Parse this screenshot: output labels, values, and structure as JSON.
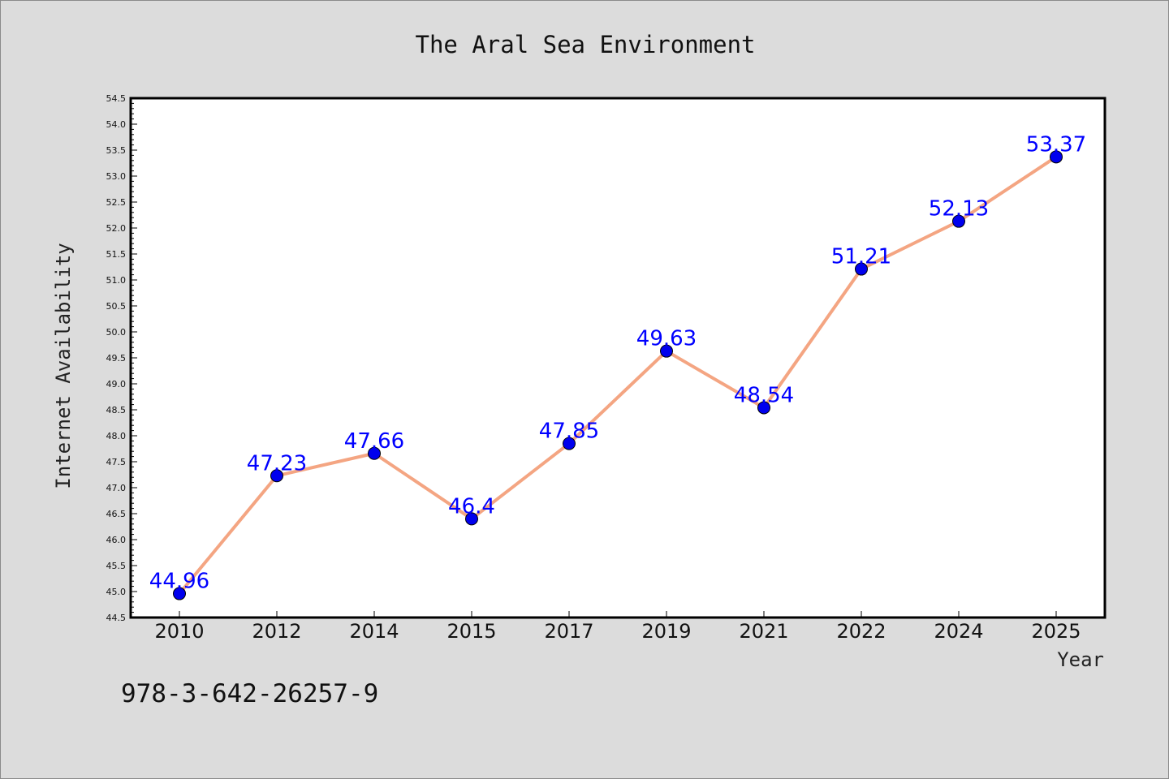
{
  "colors": {
    "background": "#dcdcdc",
    "plot_background": "#ffffff",
    "line": "#f4a582",
    "marker": "#0000ee",
    "data_label": "#0000ff"
  },
  "footnote": "978-3-642-26257-9",
  "chart_data": {
    "type": "line",
    "title": "The Aral Sea Environment",
    "xlabel": "Year",
    "ylabel": "Internet Availability",
    "categories": [
      "2010",
      "2012",
      "2014",
      "2015",
      "2017",
      "2019",
      "2021",
      "2022",
      "2024",
      "2025"
    ],
    "series": [
      {
        "values": [
          44.96,
          47.23,
          47.66,
          46.4,
          47.85,
          49.63,
          48.54,
          51.21,
          52.13,
          53.37
        ],
        "labels": [
          "44.96",
          "47.23",
          "47.66",
          "46.4",
          "47.85",
          "49.63",
          "48.54",
          "51.21",
          "52.13",
          "53.37"
        ]
      }
    ],
    "ylim": [
      44.5,
      54.5
    ],
    "yticks": [
      "44.5",
      "45.0",
      "45.5",
      "46.0",
      "46.5",
      "47.0",
      "47.5",
      "48.0",
      "48.5",
      "49.0",
      "49.5",
      "50.0",
      "50.5",
      "51.0",
      "51.5",
      "52.0",
      "52.5",
      "53.0",
      "53.5",
      "54.0",
      "54.5"
    ],
    "grid": false,
    "legend": "none",
    "markers": "circle"
  }
}
